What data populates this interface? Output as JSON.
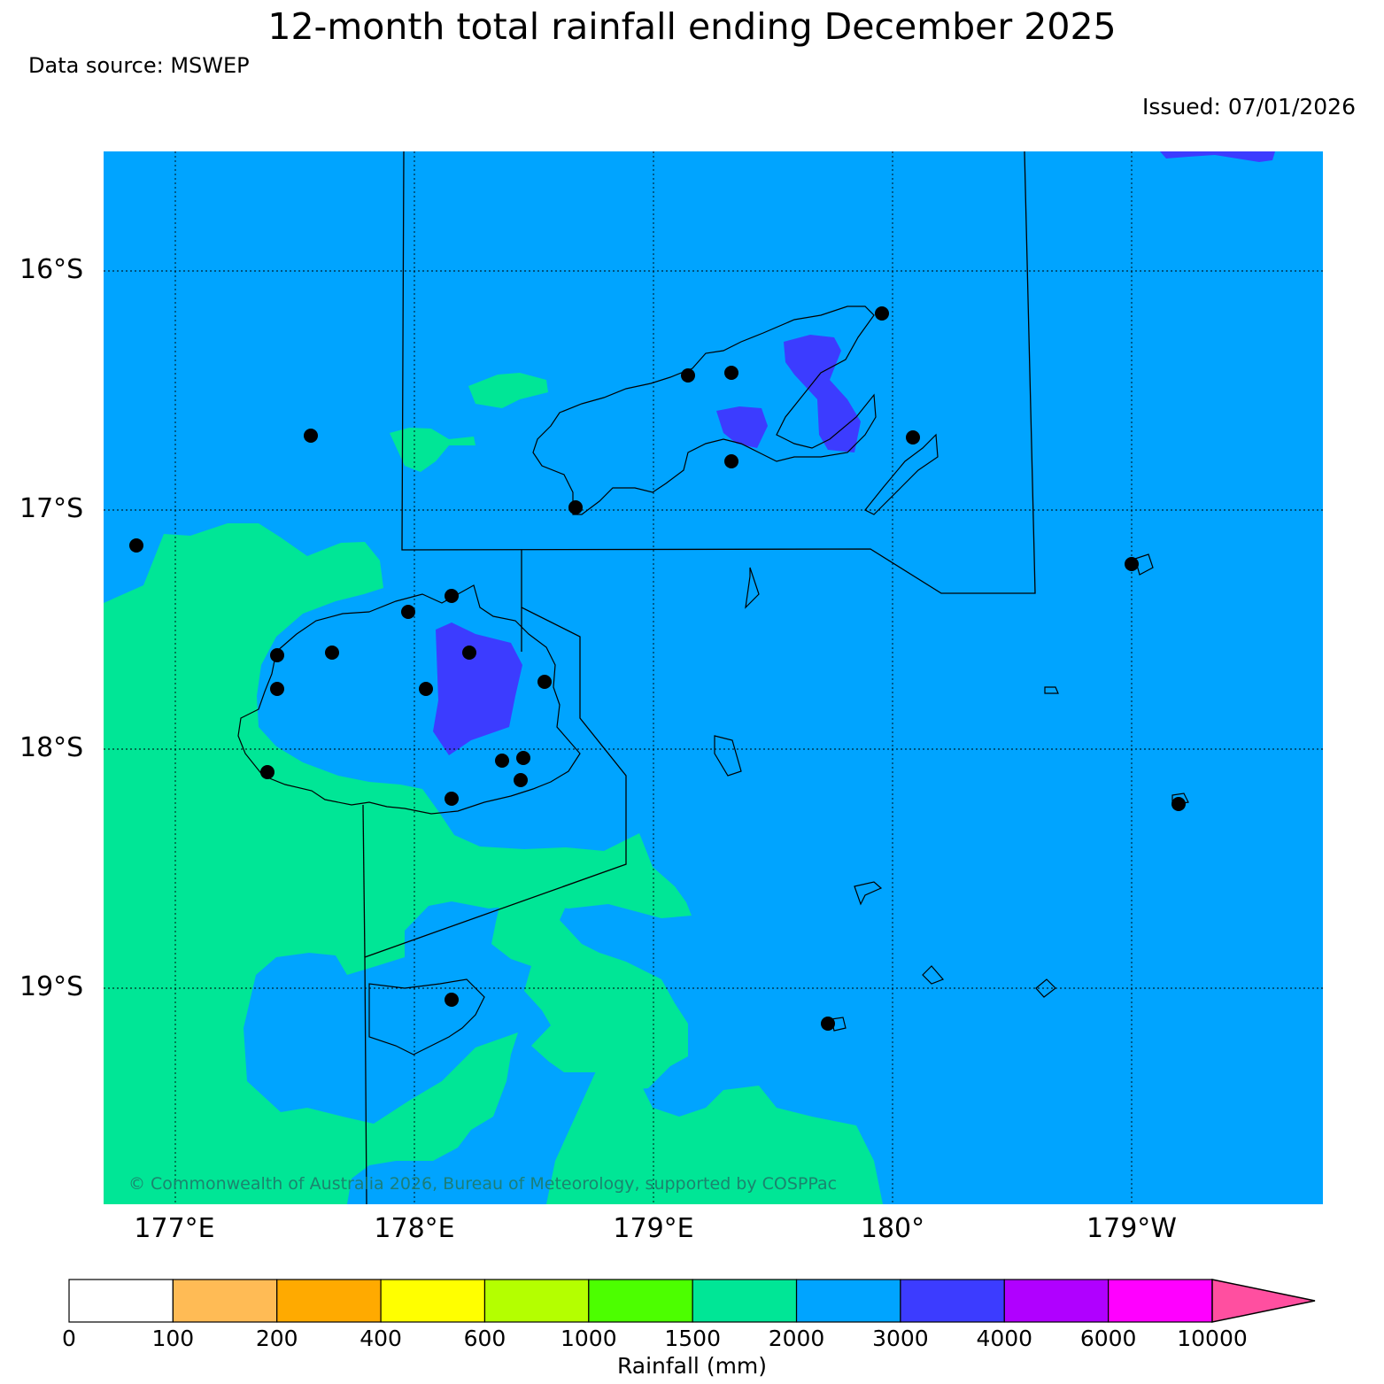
{
  "title": "12-month total rainfall ending December 2025",
  "source": "Data source: MSWEP",
  "issued": "Issued: 07/01/2026",
  "copyright": "© Commonwealth of Australia 2026, Bureau of Meteorology, supported by COSPPac",
  "lat_labels": [
    "16°S",
    "17°S",
    "18°S",
    "19°S"
  ],
  "lon_labels": [
    "177°E",
    "178°E",
    "179°E",
    "180°",
    "179°W"
  ],
  "colorbar": {
    "label": "Rainfall (mm)",
    "ticks": [
      "0",
      "100",
      "200",
      "400",
      "600",
      "1000",
      "1500",
      "2000",
      "3000",
      "4000",
      "6000",
      "10000"
    ],
    "colors": [
      "#ffffff",
      "#ffbb55",
      "#ffaa00",
      "#ffff00",
      "#b4ff00",
      "#4cff00",
      "#00e696",
      "#00a4ff",
      "#3c3cff",
      "#b000ff",
      "#ff00ff"
    ],
    "extend_color": "#ff4fa0"
  },
  "rainfall_classes_shown": [
    "1500-2000",
    "2000-3000",
    "3000-4000"
  ],
  "icons": [
    "station-dot-icon",
    "coastline-icon",
    "boundary-line-icon"
  ]
}
